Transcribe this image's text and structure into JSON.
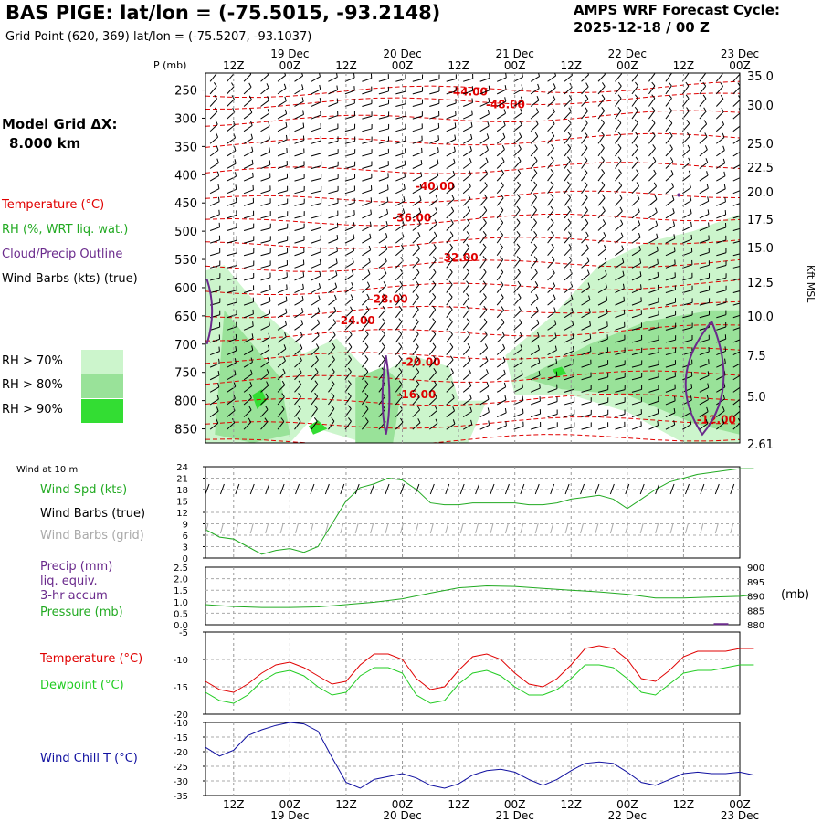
{
  "header": {
    "title": "BAS PIGE:  lat/lon = (-75.5015, -93.2148)",
    "subtitle": "Grid Point (620, 369) lat/lon = (-75.5207, -93.1037)",
    "cycle_label": "AMPS WRF Forecast Cycle:",
    "cycle_value": "2025-12-18 / 00  Z"
  },
  "model": {
    "grid_label": "Model Grid ΔX:",
    "grid_value": "8.000 km"
  },
  "colors": {
    "temperature": "#e00000",
    "rh": "#22aa22",
    "cloud": "#6a2a8c",
    "wind": "#000000",
    "wind_grid": "#aaaaaa",
    "precip": "#6a2a8c",
    "dewpoint": "#22cc22",
    "windchill": "#1010a0",
    "rh70": "#ccf5cc",
    "rh80": "#99e299",
    "rh90": "#33dd33"
  },
  "legend": {
    "temperature": "Temperature (°C)",
    "rh": "RH (%, WRT liq. wat.)",
    "cloud": "Cloud/Precip Outline",
    "wind": "Wind Barbs (kts) (true)",
    "rh70": "RH > 70%",
    "rh80": "RH > 80%",
    "rh90": "RH > 90%"
  },
  "time_axis": {
    "top_hours": [
      "12Z",
      "00Z",
      "12Z",
      "00Z",
      "12Z",
      "00Z",
      "12Z",
      "00Z",
      "12Z",
      "00Z"
    ],
    "dates": [
      "19 Dec",
      "20 Dec",
      "21 Dec",
      "22 Dec",
      "23 Dec"
    ],
    "bottom_hours": [
      "12Z",
      "00Z",
      "12Z",
      "00Z",
      "12Z",
      "00Z",
      "12Z",
      "00Z",
      "12Z",
      "00Z"
    ]
  },
  "chart_data": [
    {
      "type": "heatmap",
      "panel": "cross-section",
      "ylabel": "P (mb)",
      "ylabel_right": "Kft MSL",
      "x_range_hours": [
        6,
        120
      ],
      "y_ticks": [
        "250",
        "300",
        "350",
        "400",
        "450",
        "500",
        "550",
        "600",
        "650",
        "700",
        "750",
        "800",
        "850"
      ],
      "y_range_mb": [
        220,
        875
      ],
      "right_ticks": [
        "35.0",
        "30.0",
        "25.0",
        "22.5",
        "20.0",
        "17.5",
        "15.0",
        "12.5",
        "10.0",
        "7.5",
        "5.0",
        "2.61"
      ],
      "temperature_contours": [
        {
          "label": "-44.00",
          "hour": 62,
          "p": 260
        },
        {
          "label": "-48.00",
          "hour": 70,
          "p": 282
        },
        {
          "label": "-40.00",
          "hour": 55,
          "p": 427
        },
        {
          "label": "-36.00",
          "hour": 50,
          "p": 483
        },
        {
          "label": "-32.00",
          "hour": 60,
          "p": 553
        },
        {
          "label": "-28.00",
          "hour": 45,
          "p": 627
        },
        {
          "label": "-24.00",
          "hour": 38,
          "p": 665
        },
        {
          "label": "-20.00",
          "hour": 52,
          "p": 738
        },
        {
          "label": "-16.00",
          "hour": 51,
          "p": 796
        },
        {
          "label": "-12.00",
          "hour": 115,
          "p": 840
        }
      ],
      "rh_thresholds": [
        70,
        80,
        90
      ]
    },
    {
      "type": "line",
      "panel": "wind-10m",
      "title": "Wind at 10 m",
      "labels": [
        "Wind Spd (kts)",
        "Wind Barbs (true)",
        "Wind Barbs (grid)"
      ],
      "ylim": [
        0,
        24
      ],
      "y_ticks": [
        "24",
        "21",
        "18",
        "15",
        "12",
        "9",
        "6",
        "3",
        "0"
      ],
      "series": [
        {
          "name": "Wind Spd (kts)",
          "x": [
            0,
            3,
            6,
            9,
            12,
            15,
            18,
            21,
            24,
            27,
            30,
            33,
            36,
            39,
            42,
            45,
            48,
            51,
            54,
            57,
            60,
            63,
            66,
            69,
            72,
            75,
            78,
            81,
            84,
            87,
            90,
            93,
            96,
            99,
            102,
            105,
            108,
            111,
            114,
            117
          ],
          "values": [
            7.5,
            5.5,
            5.0,
            3.0,
            1.0,
            2.0,
            2.5,
            1.5,
            3.0,
            9.0,
            15.0,
            18.5,
            19.5,
            21.0,
            20.5,
            18.0,
            14.5,
            14.0,
            14.0,
            14.5,
            14.5,
            14.5,
            14.5,
            14.0,
            14.0,
            14.5,
            15.5,
            16.0,
            16.5,
            15.5,
            13.0,
            15.5,
            18.0,
            20.0,
            21.0,
            22.0,
            22.5,
            23.0,
            23.5,
            23.5
          ]
        }
      ]
    },
    {
      "type": "line",
      "panel": "precip-pressure",
      "labels": [
        "Precip (mm)",
        "liq. equiv.",
        "3-hr accum",
        "Pressure (mb)"
      ],
      "ylim_left": [
        0,
        2.5
      ],
      "y_ticks_left": [
        "2.5",
        "2.0",
        "1.5",
        "1.0",
        "0.5",
        "0.0"
      ],
      "ylim_right": [
        880,
        900
      ],
      "y_ticks_right": [
        "900",
        "895",
        "890",
        "885",
        "880"
      ],
      "right_unit": "(mb)",
      "series": [
        {
          "name": "Pressure (mb)",
          "x": [
            0,
            6,
            12,
            18,
            24,
            30,
            36,
            42,
            48,
            54,
            60,
            66,
            72,
            78,
            84,
            90,
            96,
            102,
            108,
            114,
            117
          ],
          "values": [
            887.0,
            886.3,
            886.0,
            886.0,
            886.2,
            887.0,
            887.8,
            889.0,
            891.0,
            892.8,
            893.5,
            893.3,
            892.6,
            892.0,
            891.4,
            890.6,
            889.3,
            889.3,
            889.6,
            889.9,
            890.4
          ]
        },
        {
          "name": "Precip (mm)",
          "x": [
            110
          ],
          "values": [
            0.03
          ]
        }
      ]
    },
    {
      "type": "line",
      "panel": "temperature",
      "labels": [
        "Temperature (°C)",
        "Dewpoint (°C)"
      ],
      "ylim": [
        -20,
        -5
      ],
      "y_ticks": [
        "-5",
        "-10",
        "-15",
        "-20"
      ],
      "series": [
        {
          "name": "Temperature (°C)",
          "x": [
            0,
            3,
            6,
            9,
            12,
            15,
            18,
            21,
            24,
            27,
            30,
            33,
            36,
            39,
            42,
            45,
            48,
            51,
            54,
            57,
            60,
            63,
            66,
            69,
            72,
            75,
            78,
            81,
            84,
            87,
            90,
            93,
            96,
            99,
            102,
            105,
            108,
            111,
            114,
            117
          ],
          "values": [
            -14.0,
            -15.5,
            -16.0,
            -14.5,
            -12.5,
            -11.0,
            -10.5,
            -11.5,
            -13.0,
            -14.5,
            -14.0,
            -11.0,
            -9.0,
            -9.0,
            -10.0,
            -13.5,
            -15.5,
            -15.0,
            -12.0,
            -9.5,
            -9.0,
            -10.0,
            -12.5,
            -14.5,
            -15.0,
            -13.5,
            -11.0,
            -8.0,
            -7.5,
            -8.0,
            -10.0,
            -13.5,
            -14.0,
            -12.0,
            -9.5,
            -8.5,
            -8.5,
            -8.5,
            -8.0,
            -8.0
          ]
        },
        {
          "name": "Dewpoint (°C)",
          "x": [
            0,
            3,
            6,
            9,
            12,
            15,
            18,
            21,
            24,
            27,
            30,
            33,
            36,
            39,
            42,
            45,
            48,
            51,
            54,
            57,
            60,
            63,
            66,
            69,
            72,
            75,
            78,
            81,
            84,
            87,
            90,
            93,
            96,
            99,
            102,
            105,
            108,
            111,
            114,
            117
          ],
          "values": [
            -16.0,
            -17.5,
            -18.0,
            -16.5,
            -14.0,
            -12.5,
            -12.0,
            -13.0,
            -15.0,
            -16.5,
            -16.0,
            -13.0,
            -11.5,
            -11.5,
            -12.5,
            -16.5,
            -18.0,
            -17.5,
            -14.5,
            -12.5,
            -12.0,
            -13.0,
            -15.0,
            -16.5,
            -16.5,
            -15.5,
            -13.5,
            -11.0,
            -11.0,
            -11.5,
            -13.5,
            -16.0,
            -16.5,
            -14.5,
            -12.5,
            -12.0,
            -12.0,
            -11.5,
            -11.0,
            -11.0
          ]
        }
      ]
    },
    {
      "type": "line",
      "panel": "windchill",
      "labels": [
        "Wind Chill T (°C)"
      ],
      "ylim": [
        -35,
        -10
      ],
      "y_ticks": [
        "-10",
        "-15",
        "-20",
        "-25",
        "-30",
        "-35"
      ],
      "series": [
        {
          "name": "Wind Chill T (°C)",
          "x": [
            0,
            3,
            6,
            9,
            12,
            15,
            18,
            21,
            24,
            27,
            30,
            33,
            36,
            39,
            42,
            45,
            48,
            51,
            54,
            57,
            60,
            63,
            66,
            69,
            72,
            75,
            78,
            81,
            84,
            87,
            90,
            93,
            96,
            99,
            102,
            105,
            108,
            111,
            114,
            117
          ],
          "values": [
            -18.5,
            -21.5,
            -19.5,
            -14.5,
            -12.5,
            -11.0,
            -10.0,
            -10.5,
            -13.0,
            -22.0,
            -30.5,
            -32.5,
            -29.5,
            -28.5,
            -27.5,
            -29.0,
            -31.5,
            -32.5,
            -31.0,
            -28.0,
            -26.5,
            -26.0,
            -27.0,
            -29.5,
            -31.5,
            -29.5,
            -26.5,
            -24.0,
            -23.5,
            -24.0,
            -27.0,
            -30.5,
            -31.5,
            -29.5,
            -27.5,
            -27.0,
            -27.5,
            -27.5,
            -27.0,
            -28.0
          ]
        }
      ]
    }
  ]
}
